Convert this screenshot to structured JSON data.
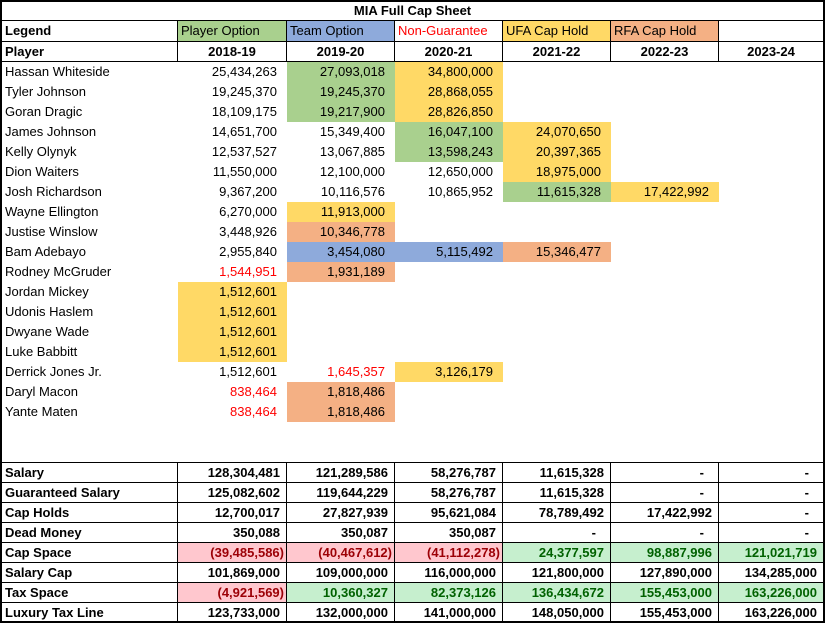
{
  "title": "MIA Full Cap Sheet",
  "legend": {
    "label": "Legend",
    "items": [
      {
        "label": "Player Option",
        "color": "#a9d08e"
      },
      {
        "label": "Team Option",
        "color": "#8eaadb"
      },
      {
        "label": "Non-Guarantee",
        "color": "#ff0000"
      },
      {
        "label": "UFA Cap Hold",
        "color": "#ffd966"
      },
      {
        "label": "RFA Cap Hold",
        "color": "#f4b084"
      }
    ]
  },
  "header": {
    "player_col": "Player",
    "seasons": [
      "2018-19",
      "2019-20",
      "2020-21",
      "2021-22",
      "2022-23",
      "2023-24"
    ]
  },
  "players": [
    {
      "name": "Hassan Whiteside",
      "cells": [
        {
          "v": "25,434,263"
        },
        {
          "v": "27,093,018",
          "bg": "green"
        },
        {
          "v": "34,800,000",
          "bg": "yellow"
        },
        {},
        {},
        {}
      ]
    },
    {
      "name": "Tyler Johnson",
      "cells": [
        {
          "v": "19,245,370"
        },
        {
          "v": "19,245,370",
          "bg": "green"
        },
        {
          "v": "28,868,055",
          "bg": "yellow"
        },
        {},
        {},
        {}
      ]
    },
    {
      "name": "Goran Dragic",
      "cells": [
        {
          "v": "18,109,175"
        },
        {
          "v": "19,217,900",
          "bg": "green"
        },
        {
          "v": "28,826,850",
          "bg": "yellow"
        },
        {},
        {},
        {}
      ]
    },
    {
      "name": "James Johnson",
      "cells": [
        {
          "v": "14,651,700"
        },
        {
          "v": "15,349,400"
        },
        {
          "v": "16,047,100",
          "bg": "green"
        },
        {
          "v": "24,070,650",
          "bg": "yellow"
        },
        {},
        {}
      ]
    },
    {
      "name": "Kelly Olynyk",
      "cells": [
        {
          "v": "12,537,527"
        },
        {
          "v": "13,067,885"
        },
        {
          "v": "13,598,243",
          "bg": "green"
        },
        {
          "v": "20,397,365",
          "bg": "yellow"
        },
        {},
        {}
      ]
    },
    {
      "name": "Dion Waiters",
      "cells": [
        {
          "v": "11,550,000"
        },
        {
          "v": "12,100,000"
        },
        {
          "v": "12,650,000"
        },
        {
          "v": "18,975,000",
          "bg": "yellow"
        },
        {},
        {}
      ]
    },
    {
      "name": "Josh Richardson",
      "cells": [
        {
          "v": "9,367,200"
        },
        {
          "v": "10,116,576"
        },
        {
          "v": "10,865,952"
        },
        {
          "v": "11,615,328",
          "bg": "green"
        },
        {
          "v": "17,422,992",
          "bg": "yellow"
        },
        {}
      ]
    },
    {
      "name": "Wayne Ellington",
      "cells": [
        {
          "v": "6,270,000"
        },
        {
          "v": "11,913,000",
          "bg": "yellow"
        },
        {},
        {},
        {},
        {}
      ]
    },
    {
      "name": "Justise Winslow",
      "cells": [
        {
          "v": "3,448,926"
        },
        {
          "v": "10,346,778",
          "bg": "orange"
        },
        {},
        {},
        {},
        {}
      ]
    },
    {
      "name": "Bam Adebayo",
      "cells": [
        {
          "v": "2,955,840"
        },
        {
          "v": "3,454,080",
          "bg": "blue"
        },
        {
          "v": "5,115,492",
          "bg": "blue"
        },
        {
          "v": "15,346,477",
          "bg": "orange"
        },
        {},
        {}
      ]
    },
    {
      "name": "Rodney McGruder",
      "cells": [
        {
          "v": "1,544,951",
          "fg": "red"
        },
        {
          "v": "1,931,189",
          "bg": "orange"
        },
        {},
        {},
        {},
        {}
      ]
    },
    {
      "name": "Jordan Mickey",
      "cells": [
        {
          "v": "1,512,601",
          "bg": "yellow"
        },
        {},
        {},
        {},
        {},
        {}
      ]
    },
    {
      "name": "Udonis Haslem",
      "cells": [
        {
          "v": "1,512,601",
          "bg": "yellow"
        },
        {},
        {},
        {},
        {},
        {}
      ]
    },
    {
      "name": "Dwyane Wade",
      "cells": [
        {
          "v": "1,512,601",
          "bg": "yellow"
        },
        {},
        {},
        {},
        {},
        {}
      ]
    },
    {
      "name": "Luke Babbitt",
      "cells": [
        {
          "v": "1,512,601",
          "bg": "yellow"
        },
        {},
        {},
        {},
        {},
        {}
      ]
    },
    {
      "name": "Derrick Jones Jr.",
      "cells": [
        {
          "v": "1,512,601"
        },
        {
          "v": "1,645,357",
          "fg": "red"
        },
        {
          "v": "3,126,179",
          "bg": "yellow"
        },
        {},
        {},
        {}
      ]
    },
    {
      "name": "Daryl Macon",
      "cells": [
        {
          "v": "838,464",
          "fg": "red"
        },
        {
          "v": "1,818,486",
          "bg": "orange"
        },
        {},
        {},
        {},
        {}
      ]
    },
    {
      "name": "Yante Maten",
      "cells": [
        {
          "v": "838,464",
          "fg": "red"
        },
        {
          "v": "1,818,486",
          "bg": "orange"
        },
        {},
        {},
        {},
        {}
      ]
    }
  ],
  "summary": [
    {
      "label": "Salary",
      "cells": [
        {
          "v": "128,304,481"
        },
        {
          "v": "121,289,586"
        },
        {
          "v": "58,276,787"
        },
        {
          "v": "11,615,328"
        },
        {
          "v": "-"
        },
        {
          "v": "-"
        }
      ]
    },
    {
      "label": "Guaranteed Salary",
      "cells": [
        {
          "v": "125,082,602"
        },
        {
          "v": "119,644,229"
        },
        {
          "v": "58,276,787"
        },
        {
          "v": "11,615,328"
        },
        {
          "v": "-"
        },
        {
          "v": "-"
        }
      ]
    },
    {
      "label": "Cap Holds",
      "cells": [
        {
          "v": "12,700,017"
        },
        {
          "v": "27,827,939"
        },
        {
          "v": "95,621,084"
        },
        {
          "v": "78,789,492"
        },
        {
          "v": "17,422,992"
        },
        {
          "v": "-"
        }
      ]
    },
    {
      "label": "Dead Money",
      "cells": [
        {
          "v": "350,088"
        },
        {
          "v": "350,087"
        },
        {
          "v": "350,087"
        },
        {
          "v": "-"
        },
        {
          "v": "-"
        },
        {
          "v": "-"
        }
      ]
    },
    {
      "label": "Cap Space",
      "cells": [
        {
          "v": "(39,485,586)",
          "bg": "pink",
          "fg": "darkred"
        },
        {
          "v": "(40,467,612)",
          "bg": "pink",
          "fg": "darkred"
        },
        {
          "v": "(41,112,278)",
          "bg": "pink",
          "fg": "darkred"
        },
        {
          "v": "24,377,597",
          "bg": "ltgreen",
          "fg": "darkgreen"
        },
        {
          "v": "98,887,996",
          "bg": "ltgreen",
          "fg": "darkgreen"
        },
        {
          "v": "121,021,719",
          "bg": "ltgreen",
          "fg": "darkgreen"
        }
      ]
    },
    {
      "label": "Salary Cap",
      "cells": [
        {
          "v": "101,869,000"
        },
        {
          "v": "109,000,000"
        },
        {
          "v": "116,000,000"
        },
        {
          "v": "121,800,000"
        },
        {
          "v": "127,890,000"
        },
        {
          "v": "134,285,000"
        }
      ]
    },
    {
      "label": "Tax Space",
      "cells": [
        {
          "v": "(4,921,569)",
          "bg": "pink",
          "fg": "darkred"
        },
        {
          "v": "10,360,327",
          "bg": "ltgreen",
          "fg": "darkgreen"
        },
        {
          "v": "82,373,126",
          "bg": "ltgreen",
          "fg": "darkgreen"
        },
        {
          "v": "136,434,672",
          "bg": "ltgreen",
          "fg": "darkgreen"
        },
        {
          "v": "155,453,000",
          "bg": "ltgreen",
          "fg": "darkgreen"
        },
        {
          "v": "163,226,000",
          "bg": "ltgreen",
          "fg": "darkgreen"
        }
      ]
    },
    {
      "label": "Luxury Tax Line",
      "cells": [
        {
          "v": "123,733,000"
        },
        {
          "v": "132,000,000"
        },
        {
          "v": "141,000,000"
        },
        {
          "v": "148,050,000"
        },
        {
          "v": "155,453,000"
        },
        {
          "v": "163,226,000"
        }
      ]
    }
  ],
  "colors": {
    "player_option": "#a9d08e",
    "team_option": "#8eaadb",
    "non_guarantee_text": "#ff0000",
    "ufa_cap_hold": "#ffd966",
    "rfa_cap_hold": "#f4b084",
    "negative_bg": "#ffc7ce",
    "negative_text": "#9c0006",
    "positive_bg": "#c6efce",
    "positive_text": "#006100"
  }
}
